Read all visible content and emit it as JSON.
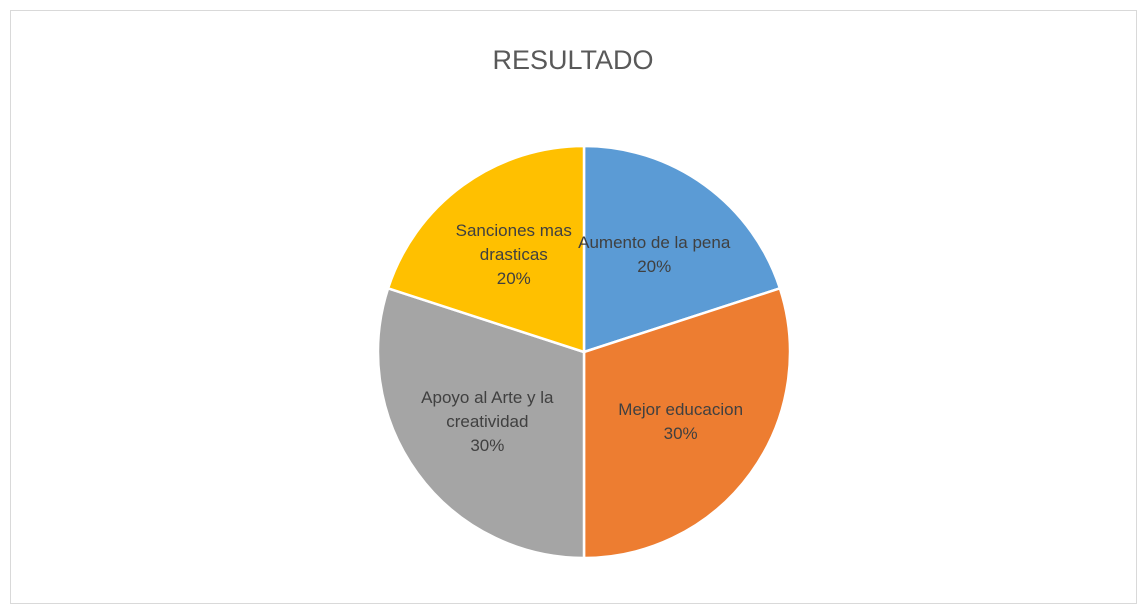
{
  "chart_data": {
    "type": "pie",
    "title": "RESULTADO",
    "categories": [
      "Aumento de la pena",
      "Mejor educacion",
      "Apoyo al Arte y la creatividad",
      "Sanciones mas drasticas"
    ],
    "values": [
      20,
      30,
      30,
      20
    ],
    "value_labels": [
      "20%",
      "30%",
      "30%",
      "20%"
    ],
    "colors": [
      "#5b9bd5",
      "#ed7d31",
      "#a5a5a5",
      "#ffc000"
    ]
  }
}
